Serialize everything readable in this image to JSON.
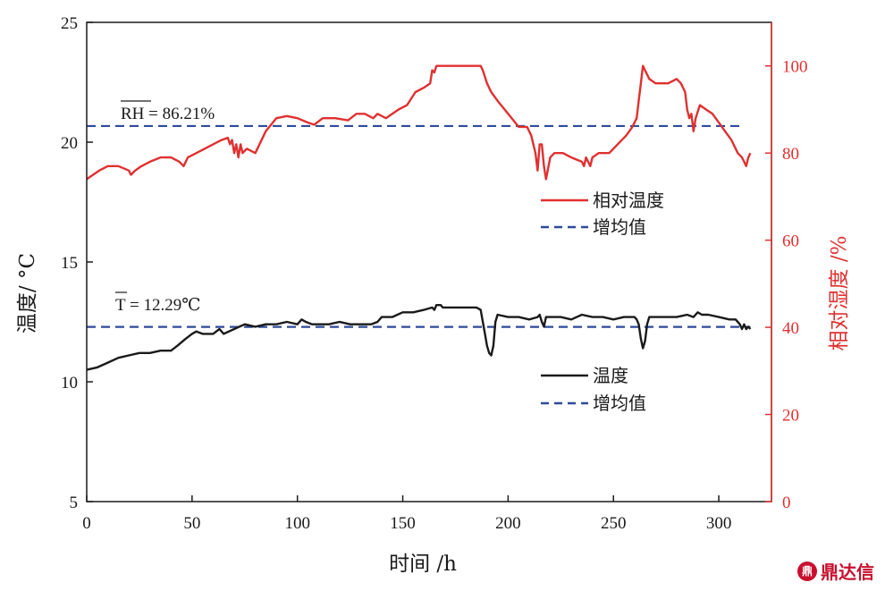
{
  "chart_data": {
    "type": "line",
    "xlabel": "时间 /h",
    "ylabel_left": "温度/ °C",
    "ylabel_right": "相对湿度 /%",
    "xlim": [
      0,
      325
    ],
    "ylim_left": [
      5,
      25
    ],
    "ylim_right": [
      0,
      110
    ],
    "x_ticks": [
      "0",
      "50",
      "100",
      "150",
      "200",
      "250",
      "300"
    ],
    "y_left_ticks": [
      "5",
      "10",
      "15",
      "20",
      "25"
    ],
    "y_right_ticks": [
      "0",
      "20",
      "40",
      "60",
      "80",
      "100"
    ],
    "colors": {
      "humidity": "#e03030",
      "temperature": "#1a1a1a",
      "mean": "#2f4a9a",
      "right_axis": "#e03030"
    },
    "legend_rh": {
      "line_label": "相对温度",
      "mean_label": "增均值"
    },
    "legend_t": {
      "line_label": "温度",
      "mean_label": "增均值"
    },
    "annotations": {
      "rh_mean": "RH = 86.21%",
      "t_mean": "T = 12.29℃"
    },
    "series": [
      {
        "name": "相对温度",
        "axis": "right",
        "x": [
          0,
          3,
          6,
          10,
          15,
          20,
          21,
          23,
          26,
          30,
          35,
          40,
          44,
          46,
          48,
          52,
          56,
          60,
          64,
          67,
          68,
          69,
          70,
          71,
          72,
          73,
          74,
          76,
          80,
          85,
          90,
          95,
          100,
          105,
          108,
          112,
          118,
          124,
          128,
          132,
          136,
          138,
          142,
          148,
          152,
          156,
          160,
          163,
          164,
          165,
          166,
          167,
          170,
          175,
          180,
          185,
          187,
          188,
          190,
          192,
          195,
          200,
          205,
          209,
          211,
          213,
          214,
          215,
          216,
          217,
          218,
          220,
          222,
          226,
          230,
          235,
          236,
          237,
          238,
          239,
          240,
          243,
          248,
          252,
          256,
          259,
          261,
          262,
          263,
          264,
          265,
          267,
          270,
          276,
          280,
          282,
          284,
          285,
          286,
          287,
          288,
          289,
          291,
          294,
          297,
          300,
          303,
          306,
          309,
          311,
          312,
          313,
          314,
          315
        ],
        "values": [
          74,
          75,
          76,
          77,
          77,
          76,
          75,
          76,
          77,
          78,
          79,
          79,
          78,
          77,
          79,
          80,
          81,
          82,
          83,
          83.5,
          82,
          83,
          80,
          82,
          79,
          82,
          80,
          81,
          80,
          85,
          88,
          88.5,
          88,
          87,
          86.5,
          88,
          88,
          87.5,
          89,
          89,
          88,
          89,
          88,
          90,
          91,
          94,
          95,
          96,
          99,
          98.5,
          100,
          100,
          100,
          100,
          100,
          100,
          100,
          99,
          96,
          94,
          92,
          89,
          86,
          86,
          84,
          80,
          76,
          82,
          82,
          77,
          74,
          79,
          80,
          80,
          79,
          78,
          77,
          79,
          78,
          77,
          79,
          80,
          80,
          82,
          84,
          86,
          88,
          92,
          96,
          100,
          99,
          97,
          96,
          96,
          97,
          96,
          94,
          90,
          88,
          89,
          85,
          88,
          91,
          90,
          89,
          87,
          85,
          83,
          80,
          79,
          78,
          77,
          79,
          80
        ]
      },
      {
        "name": "温度",
        "axis": "left",
        "x": [
          0,
          5,
          10,
          15,
          20,
          25,
          30,
          35,
          40,
          43,
          47,
          50,
          52,
          55,
          60,
          63,
          65,
          70,
          75,
          80,
          85,
          90,
          95,
          100,
          102,
          104,
          107,
          110,
          115,
          120,
          125,
          130,
          135,
          138,
          140,
          145,
          150,
          155,
          160,
          164,
          165,
          166,
          167,
          168,
          169,
          171,
          175,
          180,
          185,
          187,
          188,
          189,
          190,
          191,
          192,
          193,
          194,
          195,
          200,
          205,
          210,
          214,
          215,
          216,
          217,
          218,
          219,
          220,
          225,
          230,
          235,
          240,
          245,
          250,
          255,
          260,
          261,
          262,
          263,
          264,
          265,
          266,
          267,
          270,
          275,
          280,
          285,
          288,
          290,
          292,
          295,
          300,
          305,
          308,
          310,
          311,
          312,
          313,
          314,
          315
        ],
        "values": [
          10.5,
          10.6,
          10.8,
          11,
          11.1,
          11.2,
          11.2,
          11.3,
          11.3,
          11.5,
          11.8,
          12,
          12.1,
          12,
          12,
          12.2,
          12,
          12.2,
          12.4,
          12.3,
          12.4,
          12.4,
          12.5,
          12.4,
          12.6,
          12.5,
          12.4,
          12.4,
          12.4,
          12.5,
          12.4,
          12.4,
          12.4,
          12.5,
          12.7,
          12.7,
          12.9,
          12.9,
          13,
          13.1,
          13,
          13.2,
          13.2,
          13.2,
          13.1,
          13.1,
          13.1,
          13.1,
          13.1,
          13,
          12.5,
          12,
          11.5,
          11.2,
          11.1,
          11.5,
          12.5,
          12.8,
          12.7,
          12.7,
          12.6,
          12.7,
          12.8,
          12.5,
          12.3,
          12.7,
          12.7,
          12.7,
          12.7,
          12.6,
          12.8,
          12.7,
          12.7,
          12.6,
          12.7,
          12.7,
          12.6,
          12.4,
          11.8,
          11.4,
          11.7,
          12.4,
          12.7,
          12.7,
          12.7,
          12.7,
          12.8,
          12.7,
          12.9,
          12.8,
          12.8,
          12.7,
          12.6,
          12.6,
          12.4,
          12.2,
          12.4,
          12.2,
          12.3,
          12.2
        ]
      }
    ],
    "means": {
      "humidity": 86.21,
      "temperature": 12.29
    }
  },
  "watermark": {
    "text": "鼎达信",
    "mark": "鼎"
  }
}
